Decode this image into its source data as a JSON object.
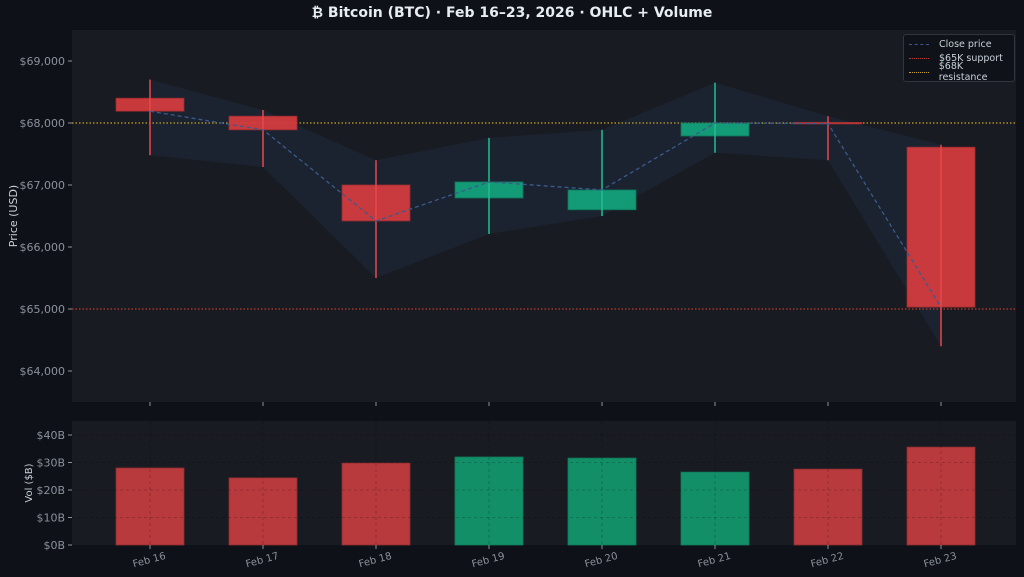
{
  "title": "₿ Bitcoin (BTC) · Feb 16–23, 2026 · OHLC + Volume",
  "colors": {
    "background": "#0e1117",
    "panel": "#181b21",
    "up": "#13a57c",
    "down": "#d73c3f",
    "close_line": "#3b5a8c",
    "band": "#1c2533",
    "support": "#c0392b",
    "resistance": "#c9a227",
    "tick_text": "#8b929b"
  },
  "legend": {
    "items": [
      {
        "label": "Close price",
        "style": "dashed",
        "color": "#3b5a8c"
      },
      {
        "label": "$65K support",
        "style": "dotted",
        "color": "#c0392b"
      },
      {
        "label": "$68K resistance",
        "style": "dotted",
        "color": "#c9a227"
      }
    ]
  },
  "price_axis": {
    "label": "Price (USD)",
    "ticks": [
      "$64,000",
      "$65,000",
      "$66,000",
      "$67,000",
      "$68,000",
      "$69,000"
    ],
    "tick_values": [
      64000,
      65000,
      66000,
      67000,
      68000,
      69000
    ]
  },
  "volume_axis": {
    "label": "Vol ($B)",
    "ticks": [
      "$0B",
      "$10B",
      "$20B",
      "$30B",
      "$40B"
    ],
    "tick_values": [
      0,
      10,
      20,
      30,
      40
    ]
  },
  "chart_data": [
    {
      "type": "candlestick",
      "title": "Bitcoin (BTC) · Feb 16–23, 2026 · OHLC + Volume",
      "xlabel": "",
      "ylabel": "Price (USD)",
      "ylim": [
        63500,
        69500
      ],
      "grid": false,
      "legend_position": "upper right",
      "categories": [
        "Feb 16",
        "Feb 17",
        "Feb 18",
        "Feb 19",
        "Feb 20",
        "Feb 21",
        "Feb 22",
        "Feb 23"
      ],
      "series": [
        {
          "name": "Open",
          "values": [
            68400,
            68110,
            67000,
            66790,
            66600,
            67790,
            68010,
            67610
          ]
        },
        {
          "name": "High",
          "values": [
            68700,
            68210,
            67400,
            67760,
            67890,
            68650,
            68110,
            67650
          ]
        },
        {
          "name": "Low",
          "values": [
            67480,
            67290,
            65500,
            66210,
            66500,
            67520,
            67400,
            64400
          ]
        },
        {
          "name": "Close",
          "values": [
            68190,
            67890,
            66420,
            67050,
            66920,
            68000,
            67990,
            65030
          ]
        }
      ],
      "annotations": [
        {
          "type": "hline",
          "y": 65000,
          "label": "$65K support"
        },
        {
          "type": "hline",
          "y": 68000,
          "label": "$68K resistance"
        },
        {
          "type": "line",
          "label": "Close price",
          "note": "dashed line through close values with shaded high-low band"
        }
      ]
    },
    {
      "type": "bar",
      "title": "",
      "xlabel": "",
      "ylabel": "Vol ($B)",
      "ylim": [
        0,
        45
      ],
      "grid": true,
      "categories": [
        "Feb 16",
        "Feb 17",
        "Feb 18",
        "Feb 19",
        "Feb 20",
        "Feb 21",
        "Feb 22",
        "Feb 23"
      ],
      "values": [
        28.0,
        24.4,
        29.8,
        32.0,
        31.6,
        26.5,
        27.6,
        35.6
      ],
      "bar_direction": [
        "down",
        "down",
        "down",
        "up",
        "up",
        "up",
        "down",
        "down"
      ]
    }
  ]
}
